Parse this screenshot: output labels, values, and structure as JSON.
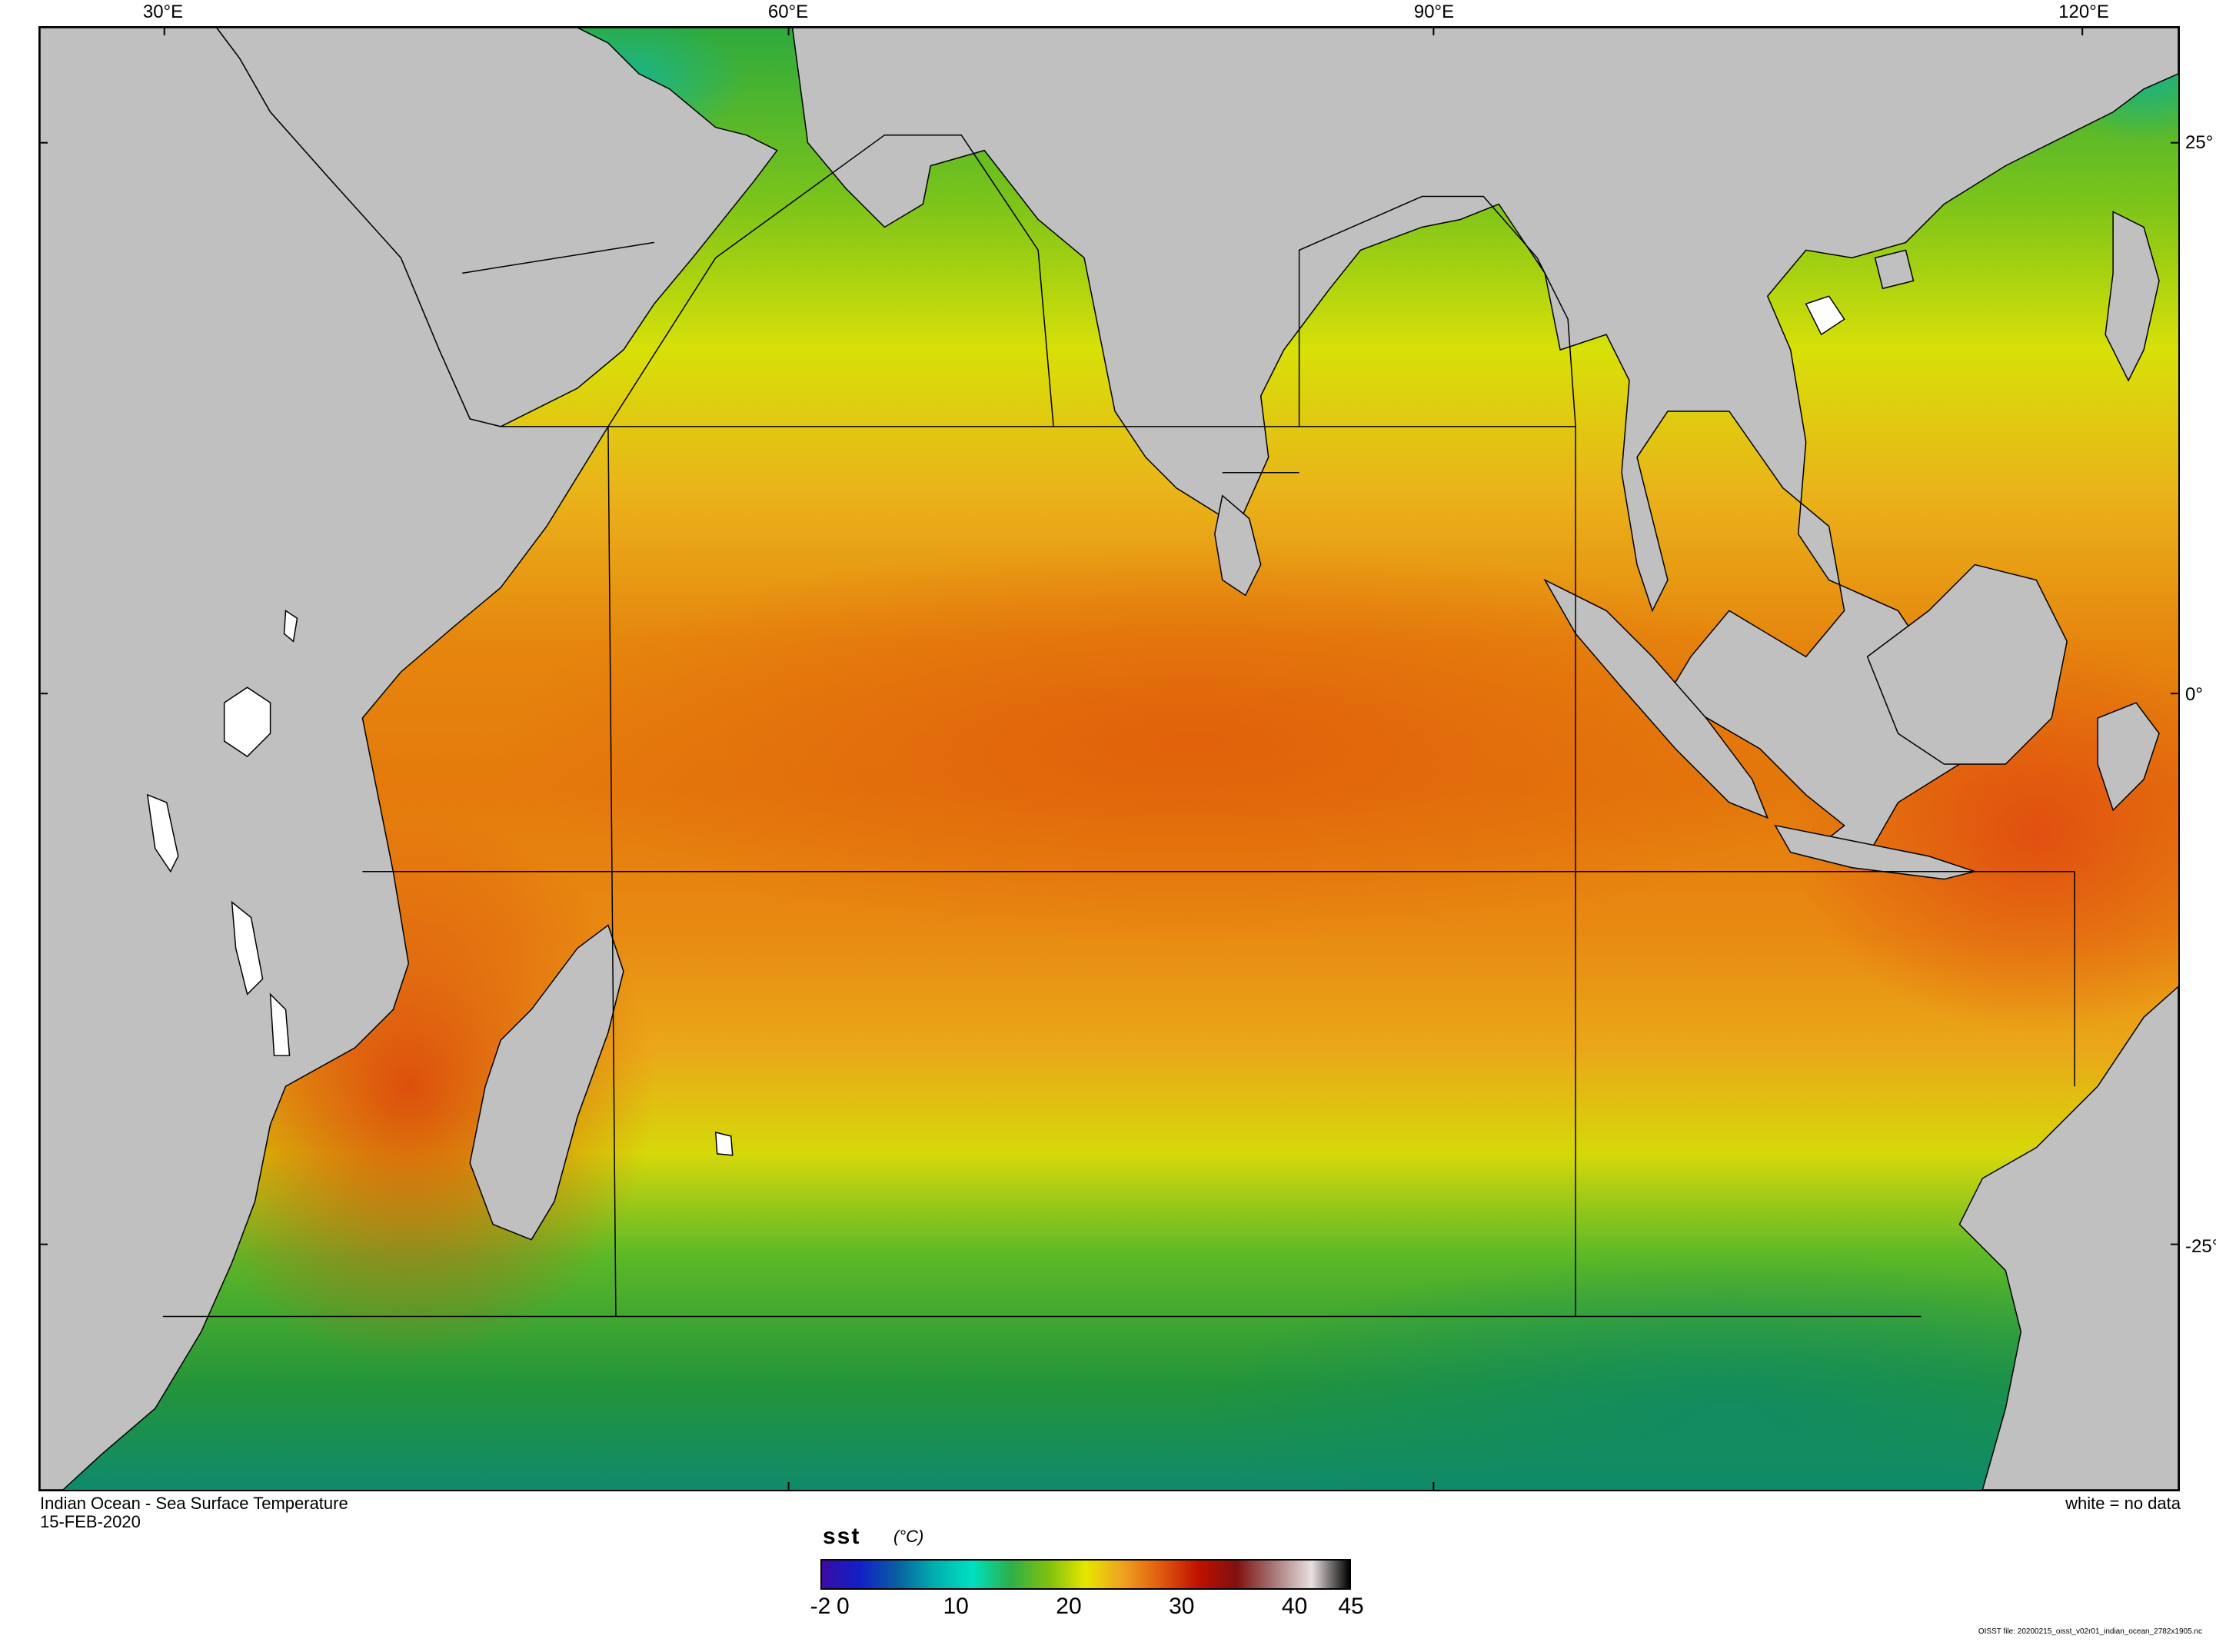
{
  "map": {
    "title": "Indian Ocean - Sea Surface Temperature",
    "date": "15-FEB-2020",
    "nodata_note": "white = no data",
    "file_note": "OISST file: 20200215_oisst_v02r01_indian_ocean_2782x1905.nc",
    "lon_labels": [
      "30°E",
      "60°E",
      "90°E",
      "120°E"
    ],
    "lat_labels": [
      "25°",
      "0°",
      "-25°"
    ],
    "land_color": "#c0c0c0",
    "nodata_color": "#ffffff"
  },
  "legend": {
    "variable": "sst",
    "unit": "(°C)",
    "ticks": [
      "-2",
      "0",
      "10",
      "20",
      "30",
      "40",
      "45"
    ],
    "range": [
      -2,
      45
    ],
    "colormap": [
      "#3a0ca3",
      "#1020c8",
      "#0a5fa0",
      "#00b0b0",
      "#00e0c0",
      "#2bb04a",
      "#7fc010",
      "#e6e600",
      "#f0a020",
      "#e05a10",
      "#c01000",
      "#801010",
      "#a87878",
      "#e8e0e0",
      "#000000"
    ]
  }
}
